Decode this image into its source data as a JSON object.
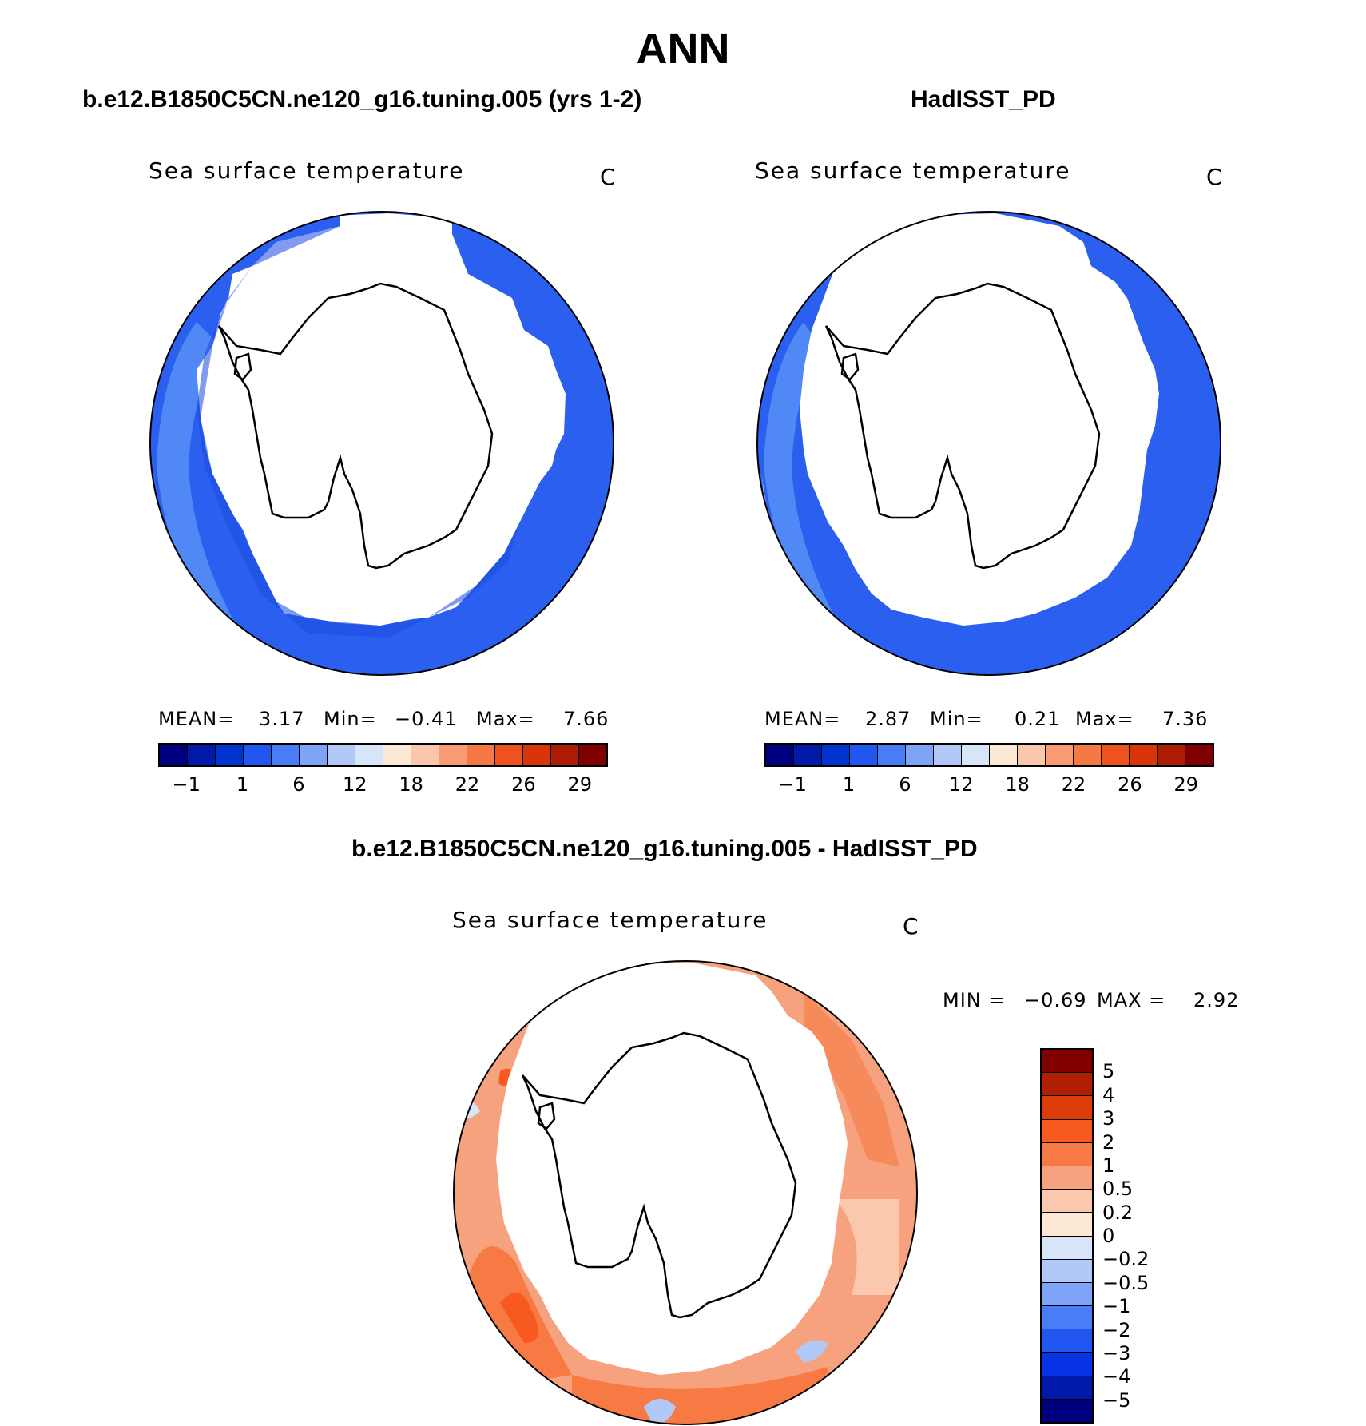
{
  "title": "ANN",
  "panels": {
    "model": {
      "title": "b.e12.B1850C5CN.ne120_g16.tuning.005 (yrs 1-2)",
      "variable": "Sea surface temperature",
      "units": "C",
      "stats": {
        "mean_label": "MEAN=",
        "mean": "3.17",
        "min_label": "Min=",
        "min": "−0.41",
        "max_label": "Max=",
        "max": "7.66"
      }
    },
    "obs": {
      "title": "HadISST_PD",
      "variable": "Sea surface temperature",
      "units": "C",
      "stats": {
        "mean_label": "MEAN=",
        "mean": "2.87",
        "min_label": "Min=",
        "min": "0.21",
        "max_label": "Max=",
        "max": "7.36"
      }
    },
    "diff": {
      "title": "b.e12.B1850C5CN.ne120_g16.tuning.005 - HadISST_PD",
      "variable": "Sea surface temperature",
      "units": "C",
      "stats": {
        "min_label": "MIN =",
        "min": "−0.69",
        "max_label": "MAX =",
        "max": "2.92"
      }
    }
  },
  "colorbars": {
    "abs": {
      "colors": [
        "#00007f",
        "#0019a8",
        "#0033d0",
        "#2156f0",
        "#4a7df5",
        "#7fa4f7",
        "#b2c9f8",
        "#d6e6f8",
        "#fde8d6",
        "#fcc6ab",
        "#f99c76",
        "#f57845",
        "#ef521e",
        "#d83608",
        "#ad1d04",
        "#800000"
      ],
      "labels": [
        "−1",
        "1",
        "6",
        "12",
        "18",
        "22",
        "26",
        "29"
      ]
    },
    "diff": {
      "colors": [
        "#800000",
        "#b01e04",
        "#dd3b08",
        "#f8591f",
        "#f77a44",
        "#f6a27e",
        "#fbc8ad",
        "#fde8d6",
        "#d6e6f8",
        "#b2c9f8",
        "#7fa4f7",
        "#4a7df5",
        "#2156f0",
        "#0633e6",
        "#0019a8",
        "#00007f"
      ],
      "labels": [
        "5",
        "4",
        "3",
        "2",
        "1",
        "0.5",
        "0.2",
        "0",
        "−0.2",
        "−0.5",
        "−1",
        "−2",
        "−3",
        "−4",
        "−5"
      ]
    }
  }
}
